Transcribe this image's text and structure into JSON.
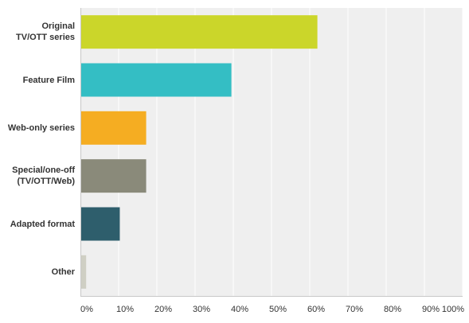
{
  "chart_data": {
    "type": "bar",
    "orientation": "horizontal",
    "categories": [
      "Original\nTV/OTT series",
      "Feature Film",
      "Web-only series",
      "Special/one-off\n(TV/OTT/Web)",
      "Adapted format",
      "Other"
    ],
    "values": [
      62,
      39.5,
      17.2,
      17.2,
      10.3,
      1.5
    ],
    "colors": [
      "#cbd62a",
      "#34bec4",
      "#f5ad22",
      "#8a8a7a",
      "#2e5e6c",
      "#cfcfc4"
    ],
    "xlim": [
      0,
      100
    ],
    "x_ticks": [
      "0%",
      "10%",
      "20%",
      "30%",
      "40%",
      "50%",
      "60%",
      "70%",
      "80%",
      "90%",
      "100%"
    ],
    "x_tick_values": [
      0,
      10,
      20,
      30,
      40,
      50,
      60,
      70,
      80,
      90,
      100
    ],
    "grid": true,
    "title": "",
    "xlabel": "",
    "ylabel": ""
  }
}
